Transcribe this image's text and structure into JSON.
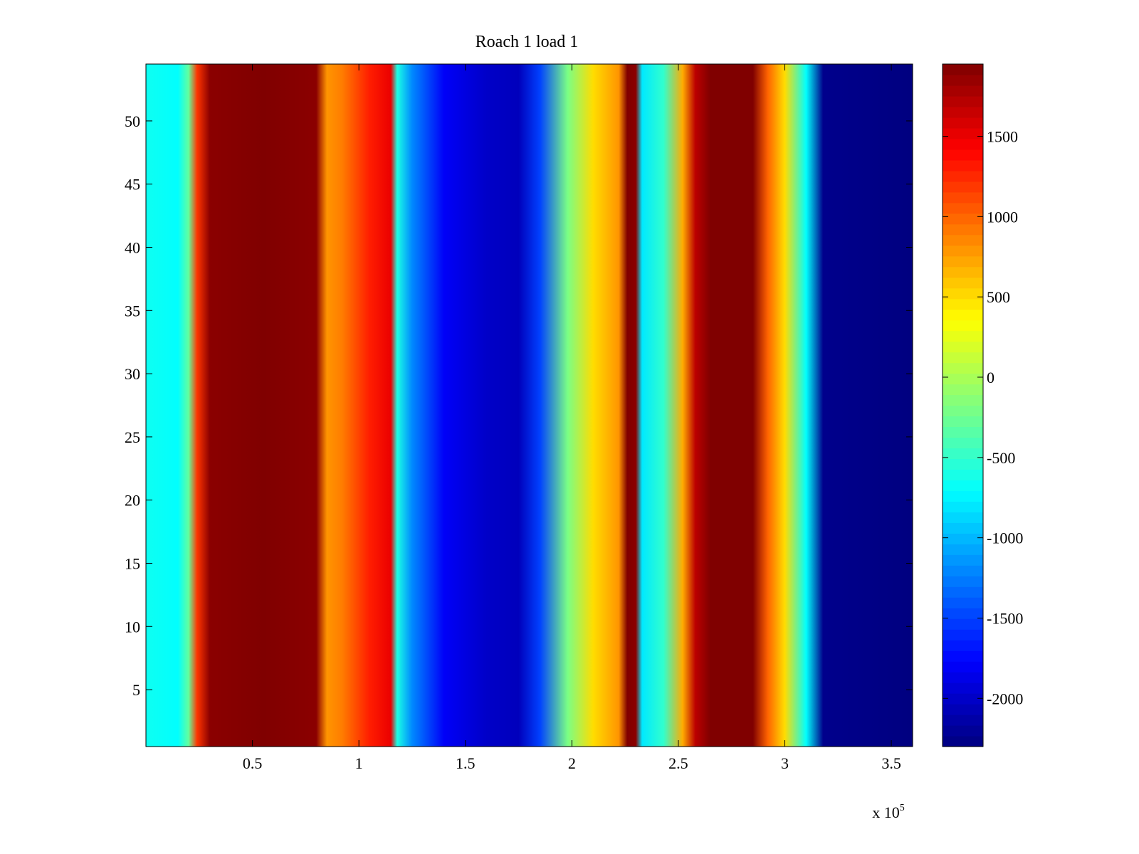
{
  "chart_data": {
    "type": "heatmap",
    "title": "Roach 1 load 1",
    "xlabel": "",
    "ylabel": "",
    "x_multiplier_label": "x 10",
    "x_multiplier_exponent": "5",
    "xlim": [
      0,
      360000
    ],
    "ylim": [
      0.5,
      54.5
    ],
    "x_ticks": [
      50000,
      100000,
      150000,
      200000,
      250000,
      300000,
      350000
    ],
    "x_tick_labels": [
      "0.5",
      "1",
      "1.5",
      "2",
      "2.5",
      "3",
      "3.5"
    ],
    "y_ticks": [
      5,
      10,
      15,
      20,
      25,
      30,
      35,
      40,
      45,
      50
    ],
    "y_tick_labels": [
      "5",
      "10",
      "15",
      "20",
      "25",
      "30",
      "35",
      "40",
      "45",
      "50"
    ],
    "rows": 54,
    "colormap": "jet",
    "clim": [
      -2300,
      1950
    ],
    "colorbar_ticks": [
      1500,
      1000,
      500,
      0,
      -500,
      -1000,
      -1500,
      -2000
    ],
    "colorbar_tick_labels": [
      "1500",
      "1000",
      "500",
      "0",
      "-500",
      "-1000",
      "-1500",
      "-2000"
    ],
    "column_profile": [
      {
        "x": 0,
        "value": -650
      },
      {
        "x": 15000,
        "value": -700
      },
      {
        "x": 20000,
        "value": -300
      },
      {
        "x": 24000,
        "value": 1200
      },
      {
        "x": 30000,
        "value": 1900
      },
      {
        "x": 55000,
        "value": 1950
      },
      {
        "x": 80000,
        "value": 1900
      },
      {
        "x": 85000,
        "value": 800
      },
      {
        "x": 92000,
        "value": 900
      },
      {
        "x": 105000,
        "value": 1300
      },
      {
        "x": 115000,
        "value": 1500
      },
      {
        "x": 118000,
        "value": -600
      },
      {
        "x": 125000,
        "value": -1200
      },
      {
        "x": 140000,
        "value": -1800
      },
      {
        "x": 160000,
        "value": -2000
      },
      {
        "x": 175000,
        "value": -2050
      },
      {
        "x": 185000,
        "value": -1500
      },
      {
        "x": 198000,
        "value": -200
      },
      {
        "x": 210000,
        "value": 500
      },
      {
        "x": 222000,
        "value": 800
      },
      {
        "x": 226000,
        "value": 1950
      },
      {
        "x": 230000,
        "value": 1900
      },
      {
        "x": 233000,
        "value": -800
      },
      {
        "x": 243000,
        "value": -500
      },
      {
        "x": 252000,
        "value": 700
      },
      {
        "x": 258000,
        "value": 1700
      },
      {
        "x": 265000,
        "value": 1950
      },
      {
        "x": 285000,
        "value": 1950
      },
      {
        "x": 292000,
        "value": 1000
      },
      {
        "x": 300000,
        "value": 500
      },
      {
        "x": 310000,
        "value": -700
      },
      {
        "x": 318000,
        "value": -2250
      },
      {
        "x": 360000,
        "value": -2300
      }
    ]
  }
}
